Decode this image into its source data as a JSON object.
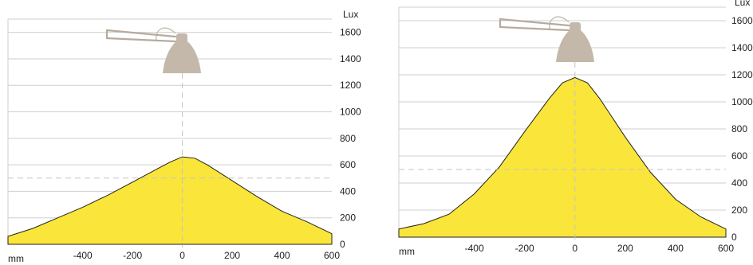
{
  "colors": {
    "fill": "#fae53a",
    "outline": "#222222",
    "grid": "#cfcfcf",
    "lamp": "#c3b8aa"
  },
  "icons": [
    "desk-lamp-icon"
  ],
  "chart_data": [
    {
      "type": "area",
      "ylabel": "Lux",
      "xlabel": "mm",
      "x_ticks": [
        "-400",
        "-200",
        "0",
        "200",
        "400",
        "600"
      ],
      "y_ticks": [
        "0",
        "200",
        "400",
        "600",
        "800",
        "1000",
        "1200",
        "1400",
        "1600"
      ],
      "xlim": [
        -700,
        600
      ],
      "ylim": [
        0,
        1700
      ],
      "reference_line": 500,
      "grid": true,
      "x": [
        -700,
        -600,
        -500,
        -400,
        -300,
        -200,
        -100,
        -50,
        0,
        50,
        100,
        200,
        300,
        400,
        500,
        600
      ],
      "values": [
        60,
        120,
        200,
        280,
        370,
        470,
        570,
        620,
        660,
        650,
        600,
        480,
        360,
        250,
        170,
        80
      ]
    },
    {
      "type": "area",
      "ylabel": "Lux",
      "xlabel": "mm",
      "x_ticks": [
        "-400",
        "-200",
        "0",
        "200",
        "400",
        "600"
      ],
      "y_ticks": [
        "0",
        "200",
        "400",
        "600",
        "800",
        "1000",
        "1200",
        "1400",
        "1600"
      ],
      "xlim": [
        -700,
        600
      ],
      "ylim": [
        0,
        1700
      ],
      "reference_line": 500,
      "grid": true,
      "x": [
        -700,
        -600,
        -500,
        -400,
        -300,
        -200,
        -100,
        -50,
        0,
        50,
        100,
        200,
        300,
        400,
        500,
        600
      ],
      "values": [
        60,
        100,
        170,
        320,
        520,
        780,
        1030,
        1140,
        1180,
        1140,
        1020,
        740,
        480,
        280,
        150,
        60
      ]
    }
  ]
}
